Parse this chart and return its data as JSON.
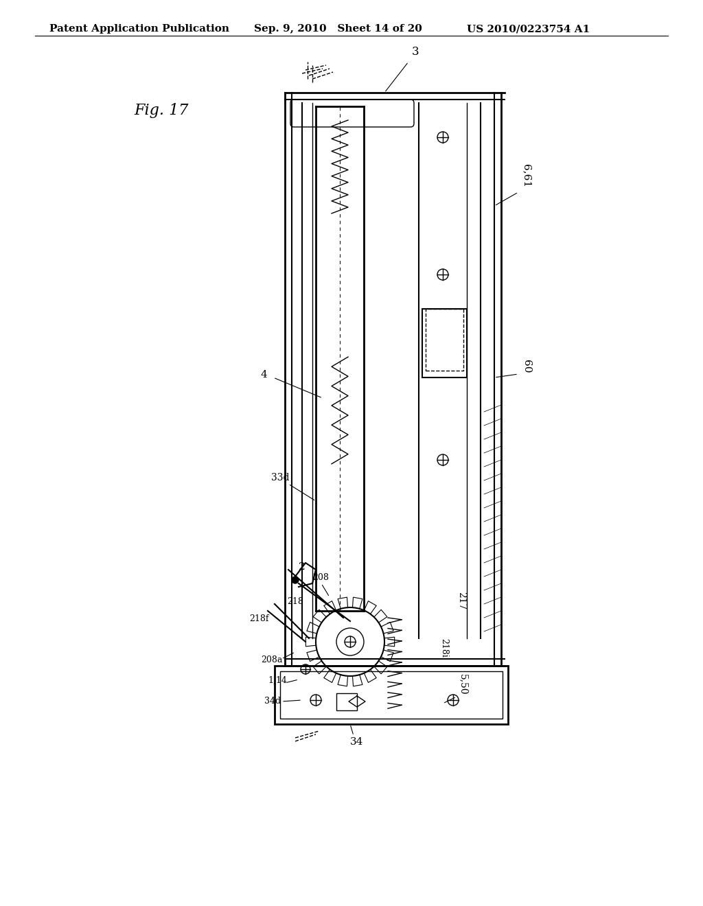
{
  "title_header_left": "Patent Application Publication",
  "title_header_mid": "Sep. 9, 2010   Sheet 14 of 20",
  "title_header_right": "US 2010/0223754 A1",
  "fig_label": "Fig. 17",
  "background_color": "#ffffff",
  "line_color": "#000000",
  "light_line_color": "#555555",
  "header_fontsize": 11,
  "fig_label_fontsize": 16
}
